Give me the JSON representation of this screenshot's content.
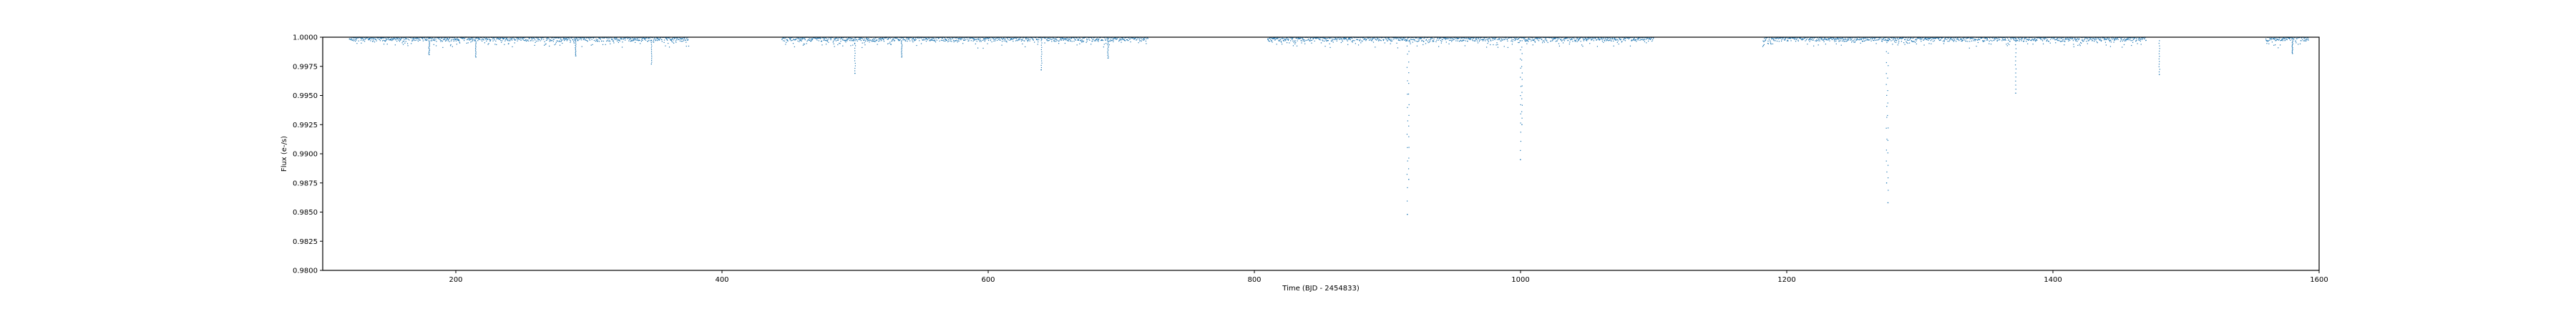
{
  "chart_data": {
    "type": "scatter",
    "title": "",
    "xlabel": "Time (BJD - 2454833)",
    "ylabel": "Flux (e-/s)",
    "xlim": [
      100,
      1600
    ],
    "ylim": [
      0.98,
      1.0
    ],
    "xticks": [
      200,
      400,
      600,
      800,
      1000,
      1200,
      1400,
      1600
    ],
    "yticks": [
      0.98,
      0.9825,
      0.985,
      0.9875,
      0.99,
      0.9925,
      0.995,
      0.9975,
      1.0
    ],
    "xtick_labels": [
      "200",
      "400",
      "600",
      "800",
      "1000",
      "1200",
      "1400",
      "1600"
    ],
    "ytick_labels": [
      "0.9800",
      "0.9825",
      "0.9850",
      "0.9875",
      "0.9900",
      "0.9925",
      "0.9950",
      "0.9975",
      "1.0000"
    ],
    "grid": false,
    "marker_color": "#1f77b4",
    "segments": [
      [
        120,
        375
      ],
      [
        445,
        720
      ],
      [
        810,
        1100
      ],
      [
        1182,
        1470
      ],
      [
        1560,
        1592
      ]
    ],
    "baseline": 0.9997,
    "noise_depth": 0.0006,
    "dips": [
      {
        "x": 180,
        "y": 0.9985
      },
      {
        "x": 215,
        "y": 0.9983
      },
      {
        "x": 290,
        "y": 0.9984
      },
      {
        "x": 347,
        "y": 0.9977
      },
      {
        "x": 500,
        "y": 0.9969
      },
      {
        "x": 535,
        "y": 0.9983
      },
      {
        "x": 640,
        "y": 0.9972
      },
      {
        "x": 690,
        "y": 0.9982
      },
      {
        "x": 915,
        "y": 0.9848
      },
      {
        "x": 916,
        "y": 0.9878
      },
      {
        "x": 1000,
        "y": 0.9895
      },
      {
        "x": 1001,
        "y": 0.9925
      },
      {
        "x": 1275,
        "y": 0.9875
      },
      {
        "x": 1276,
        "y": 0.9858
      },
      {
        "x": 1372,
        "y": 0.9952
      },
      {
        "x": 1480,
        "y": 0.9968
      },
      {
        "x": 1580,
        "y": 0.9986
      }
    ]
  }
}
